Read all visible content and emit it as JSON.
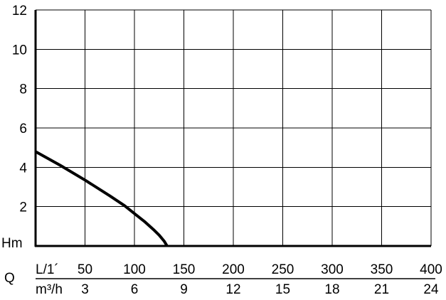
{
  "chart_data": {
    "type": "line",
    "y_ticks": [
      "12",
      "10",
      "8",
      "6",
      "4",
      "2"
    ],
    "y_unit_label": "Hm",
    "ylim": [
      0,
      12
    ],
    "x_primary": {
      "unit_label": "L/1´",
      "ticks": [
        "50",
        "100",
        "150",
        "200",
        "250",
        "300",
        "350",
        "400"
      ],
      "range": [
        0,
        400
      ]
    },
    "x_secondary": {
      "unit_label": "m³/h",
      "ticks": [
        "3",
        "6",
        "9",
        "12",
        "15",
        "18",
        "21",
        "24"
      ],
      "range": [
        0,
        24
      ]
    },
    "axis_letter": "Q",
    "grid": true,
    "series": [
      {
        "x": [
          0,
          25,
          50,
          75,
          90,
          100,
          110,
          120,
          125,
          130,
          133
        ],
        "y": [
          4.8,
          4.1,
          3.35,
          2.55,
          2.05,
          1.65,
          1.25,
          0.8,
          0.55,
          0.25,
          0
        ]
      }
    ]
  }
}
